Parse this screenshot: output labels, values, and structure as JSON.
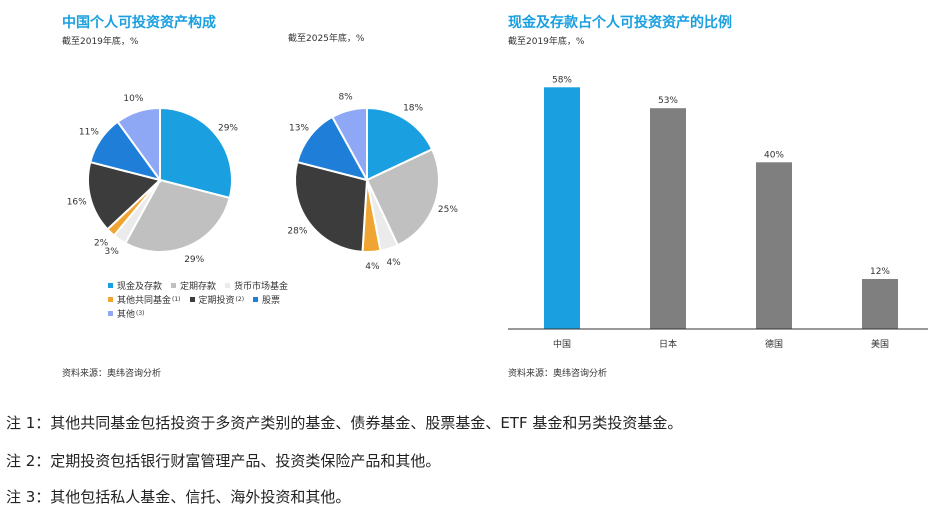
{
  "left_panel": {
    "title": "中国个人可投资资产构成",
    "subtitle_2019": "截至2019年底，%",
    "subtitle_2025": "截至2025年底，%",
    "source": "资料来源：奥纬咨询分析"
  },
  "right_panel": {
    "title": "现金及存款占个人可投资资产的比例",
    "subtitle": "截至2019年底，%",
    "source": "资料来源：奥纬咨询分析"
  },
  "legend": [
    {
      "label": "现金及存款",
      "sup": "",
      "color": "#1a9fe0"
    },
    {
      "label": "定期存款",
      "sup": "",
      "color": "#c0c0c0"
    },
    {
      "label": "货币市场基金",
      "sup": "",
      "color": "#ebebeb"
    },
    {
      "label": "其他共同基金",
      "sup": "(1)",
      "color": "#f0a533"
    },
    {
      "label": "定期投资",
      "sup": "(2)",
      "color": "#3c3c3c"
    },
    {
      "label": "股票",
      "sup": "",
      "color": "#1f7fd8"
    },
    {
      "label": "其他",
      "sup": "(3)",
      "color": "#8ea8f5"
    }
  ],
  "chart_data": [
    {
      "type": "pie",
      "title": "中国个人可投资资产构成",
      "subtitle": "截至2019年底，%",
      "series": [
        {
          "name": "现金及存款",
          "value": 29,
          "label": "29%"
        },
        {
          "name": "定期存款",
          "value": 29,
          "label": "29%"
        },
        {
          "name": "货币市场基金",
          "value": 3,
          "label": "3%"
        },
        {
          "name": "其他共同基金",
          "value": 2,
          "label": "2%"
        },
        {
          "name": "定期投资",
          "value": 16,
          "label": "16%"
        },
        {
          "name": "股票",
          "value": 11,
          "label": "11%"
        },
        {
          "name": "其他",
          "value": 10,
          "label": "10%"
        }
      ]
    },
    {
      "type": "pie",
      "subtitle": "截至2025年底，%",
      "series": [
        {
          "name": "现金及存款",
          "value": 18,
          "label": "18%"
        },
        {
          "name": "定期存款",
          "value": 25,
          "label": "25%"
        },
        {
          "name": "货币市场基金",
          "value": 4,
          "label": "4%"
        },
        {
          "name": "其他共同基金",
          "value": 4,
          "label": "4%"
        },
        {
          "name": "定期投资",
          "value": 28,
          "label": "28%"
        },
        {
          "name": "股票",
          "value": 13,
          "label": "13%"
        },
        {
          "name": "其他",
          "value": 8,
          "label": "8%"
        }
      ]
    },
    {
      "type": "bar",
      "title": "现金及存款占个人可投资资产的比例",
      "subtitle": "截至2019年底，%",
      "categories": [
        "中国",
        "日本",
        "德国",
        "美国"
      ],
      "values": [
        58,
        53,
        40,
        12
      ],
      "value_labels": [
        "58%",
        "53%",
        "40%",
        "12%"
      ],
      "colors": [
        "#1a9fe0",
        "#7f7f7f",
        "#7f7f7f",
        "#7f7f7f"
      ],
      "ylim": [
        0,
        60
      ]
    }
  ],
  "notes": [
    "注 1：其他共同基金包括投资于多资产类别的基金、债券基金、股票基金、ETF 基金和另类投资基金。",
    "注 2：定期投资包括银行财富管理产品、投资类保险产品和其他。",
    "注 3：其他包括私人基金、信托、海外投资和其他。"
  ]
}
